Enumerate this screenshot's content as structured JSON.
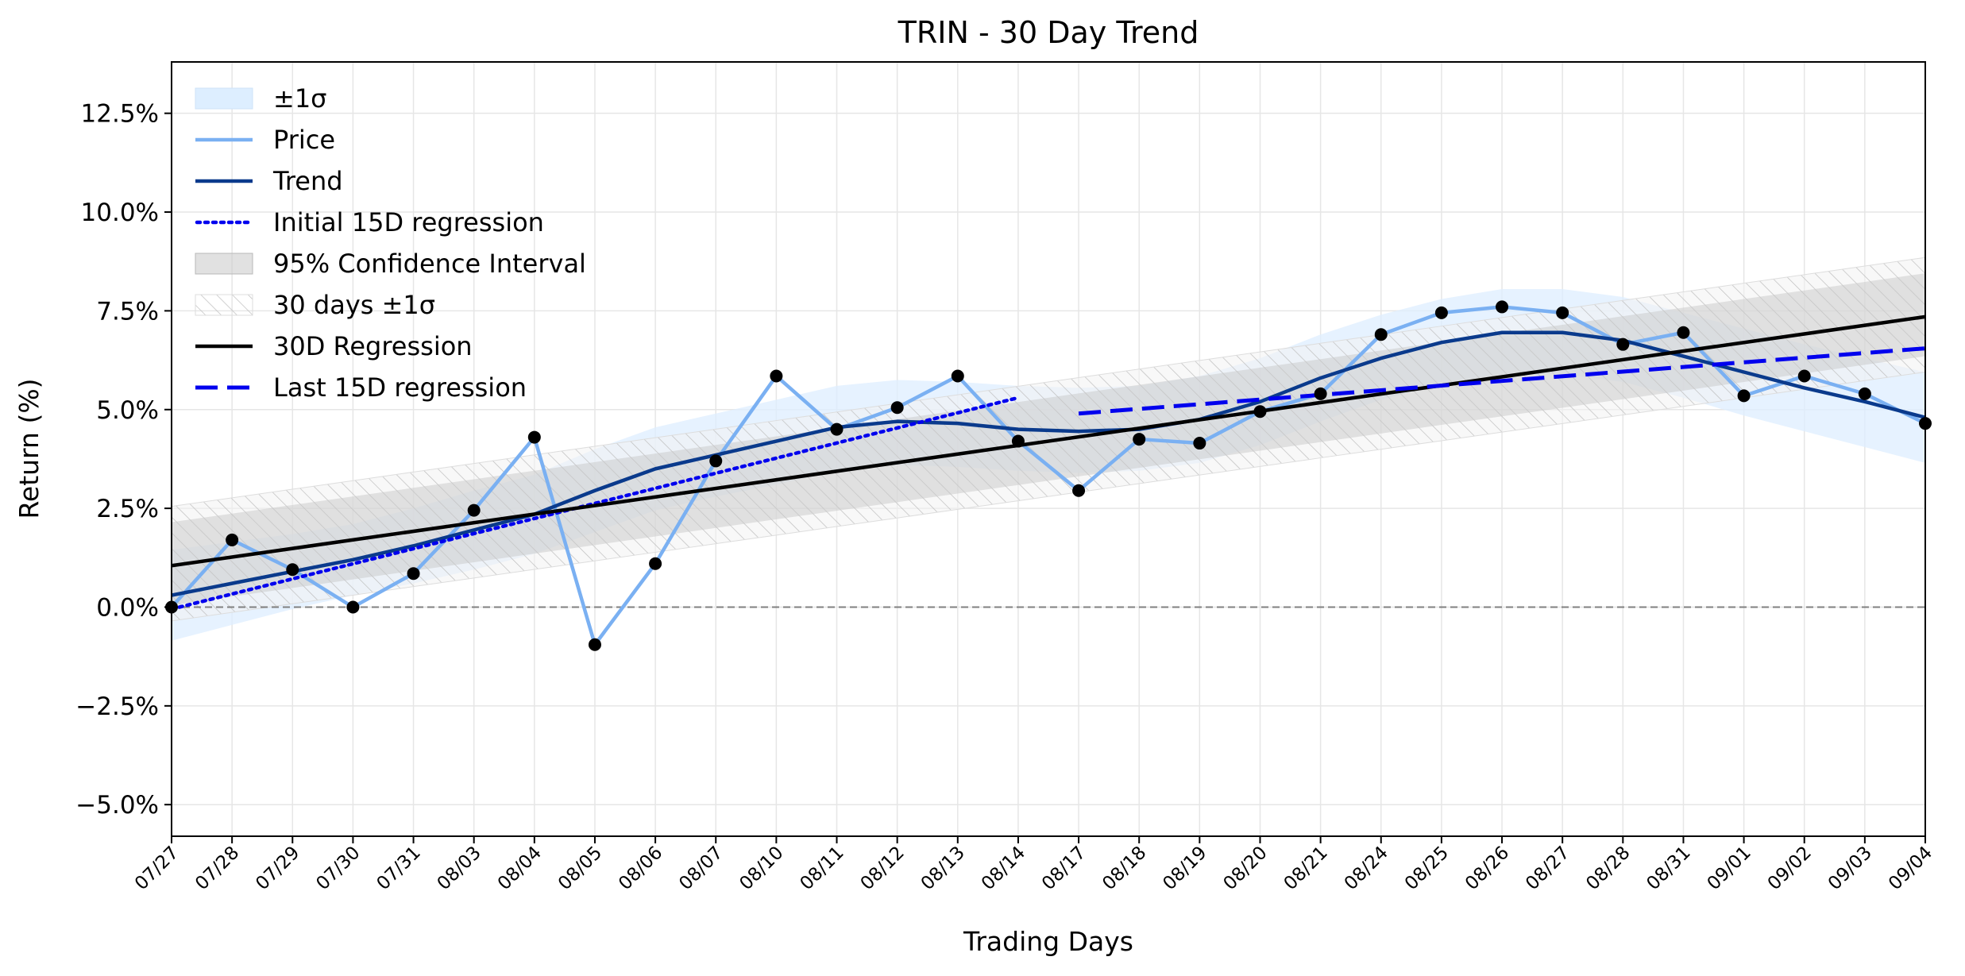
{
  "chart_data": {
    "type": "line",
    "title": "TRIN - 30 Day Trend",
    "xlabel": "Trading Days",
    "ylabel": "Return (%)",
    "ylim": [
      -5.8,
      13.8
    ],
    "yticks": [
      -5.0,
      -2.5,
      0.0,
      2.5,
      5.0,
      7.5,
      10.0,
      12.5
    ],
    "ytick_labels": [
      "−5.0%",
      "−2.5%",
      "0.0%",
      "2.5%",
      "5.0%",
      "7.5%",
      "10.0%",
      "12.5%"
    ],
    "grid": true,
    "legend_position": "top-left",
    "zero_line": 0,
    "categories": [
      "07/27",
      "07/28",
      "07/29",
      "07/30",
      "07/31",
      "08/03",
      "08/04",
      "08/05",
      "08/06",
      "08/07",
      "08/10",
      "08/11",
      "08/12",
      "08/13",
      "08/14",
      "08/17",
      "08/18",
      "08/19",
      "08/20",
      "08/21",
      "08/24",
      "08/25",
      "08/26",
      "08/27",
      "08/28",
      "08/31",
      "09/01",
      "09/02",
      "09/03",
      "09/04"
    ],
    "price": [
      0.0,
      1.7,
      0.95,
      0.0,
      0.85,
      2.45,
      4.3,
      -0.95,
      1.1,
      3.7,
      5.85,
      4.5,
      5.05,
      5.85,
      4.2,
      2.95,
      4.25,
      4.15,
      4.95,
      5.4,
      6.9,
      7.45,
      7.6,
      7.45,
      6.65,
      6.95,
      5.35,
      5.85,
      5.4,
      4.65
    ],
    "trend": [
      0.3,
      0.6,
      0.9,
      1.2,
      1.55,
      1.95,
      2.35,
      2.95,
      3.5,
      3.85,
      4.2,
      4.55,
      4.7,
      4.65,
      4.5,
      4.45,
      4.5,
      4.75,
      5.2,
      5.8,
      6.3,
      6.7,
      6.95,
      6.95,
      6.75,
      6.35,
      5.95,
      5.55,
      5.2,
      4.8
    ],
    "sigma_band": {
      "lower": [
        -0.85,
        -0.45,
        -0.05,
        0.3,
        0.6,
        0.95,
        1.35,
        1.9,
        2.45,
        2.8,
        3.1,
        3.45,
        3.6,
        3.55,
        3.45,
        3.4,
        3.45,
        3.65,
        4.1,
        4.7,
        5.25,
        5.65,
        5.9,
        5.9,
        5.7,
        5.3,
        4.85,
        4.45,
        4.05,
        3.65
      ],
      "upper": [
        1.45,
        1.65,
        1.85,
        2.1,
        2.5,
        2.95,
        3.35,
        4.0,
        4.55,
        4.9,
        5.25,
        5.6,
        5.75,
        5.7,
        5.6,
        5.55,
        5.6,
        5.85,
        6.3,
        6.9,
        7.4,
        7.8,
        8.05,
        8.05,
        7.85,
        7.45,
        7.05,
        6.65,
        6.3,
        5.95
      ]
    },
    "regression_30d": {
      "start": 1.05,
      "end": 7.35
    },
    "ci95_30d": {
      "start_lower": 0.05,
      "start_upper": 2.15,
      "end_lower": 6.35,
      "end_upper": 8.45
    },
    "sigma_30d": {
      "start_lower": -0.35,
      "start_upper": 2.55,
      "end_lower": 5.95,
      "end_upper": 8.85
    },
    "regression_initial_15d": {
      "from_index": 0,
      "to_index": 14,
      "start": -0.05,
      "end": 5.3
    },
    "regression_last_15d": {
      "from_index": 15,
      "to_index": 29,
      "start": 4.9,
      "end": 6.55
    },
    "legend": [
      {
        "key": "sigma",
        "label": "±1σ"
      },
      {
        "key": "price",
        "label": "Price"
      },
      {
        "key": "trend",
        "label": "Trend"
      },
      {
        "key": "init15",
        "label": "Initial 15D regression"
      },
      {
        "key": "ci95",
        "label": "95% Confidence Interval"
      },
      {
        "key": "sig30",
        "label": "30 days ±1σ"
      },
      {
        "key": "reg30",
        "label": "30D Regression"
      },
      {
        "key": "last15",
        "label": "Last 15D regression"
      }
    ],
    "colors": {
      "price": "#7ab0f2",
      "trend": "#0a3a8c",
      "sigma_fill": "#ddeeff",
      "initial_15d": "#0000ee",
      "last_15d": "#0000ee",
      "regression_30d": "#000000",
      "ci95_fill": "#c8c8c8",
      "hatch": "#c0c0c0",
      "points": "#000000",
      "zero_line": "#808080"
    }
  }
}
